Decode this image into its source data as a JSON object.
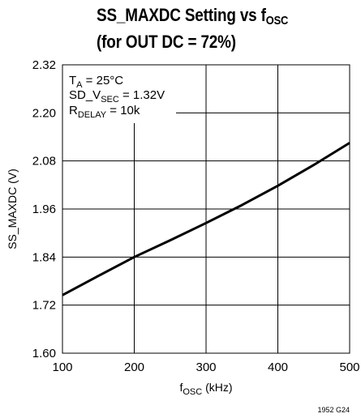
{
  "chart_data": {
    "type": "line",
    "title_line1_main": "SS_MAXDC Setting vs f",
    "title_line1_sub": "OSC",
    "title_line2": "(for OUT DC = 72%)",
    "xlabel_main": "f",
    "xlabel_sub": "OSC",
    "xlabel_unit": " (kHz)",
    "ylabel": "SS_MAXDC (V)",
    "xlim": [
      100,
      500
    ],
    "ylim": [
      1.6,
      2.32
    ],
    "x_ticks": [
      100,
      200,
      300,
      400,
      500
    ],
    "x_tick_labels": [
      "100",
      "200",
      "300",
      "400",
      "500"
    ],
    "y_ticks": [
      1.6,
      1.72,
      1.84,
      1.96,
      2.08,
      2.2,
      2.32
    ],
    "y_tick_labels": [
      "1.60",
      "1.72",
      "1.84",
      "1.96",
      "2.08",
      "2.20",
      "2.32"
    ],
    "grid": true,
    "series": [
      {
        "x": [
          100,
          150,
          200,
          250,
          300,
          350,
          400,
          450,
          500
        ],
        "y": [
          1.745,
          1.793,
          1.84,
          1.882,
          1.925,
          1.97,
          2.018,
          2.07,
          2.125
        ]
      }
    ],
    "annotations": [
      {
        "main": "T",
        "sub": "A",
        "rest": " = 25°C"
      },
      {
        "main": "SD_V",
        "sub": "SEC",
        "rest": " = 1.32V"
      },
      {
        "main": "R",
        "sub": "DELAY",
        "rest": " = 10k"
      }
    ],
    "line_color": "#000000"
  },
  "figure_id": "1952 G24"
}
